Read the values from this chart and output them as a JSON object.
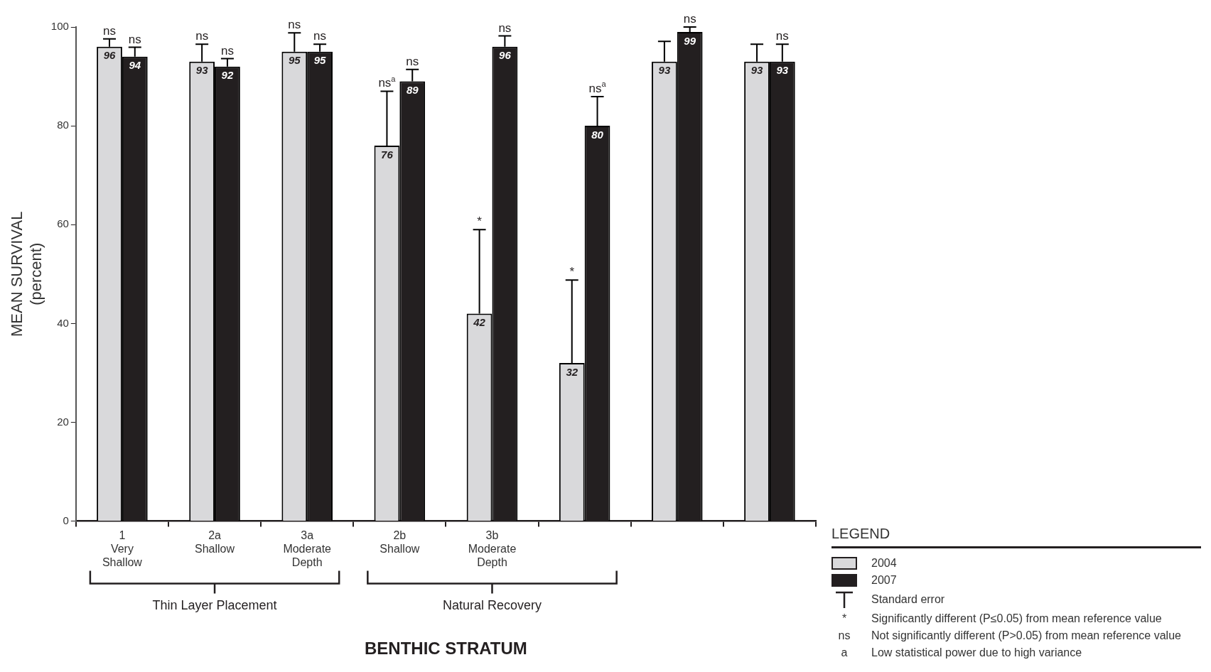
{
  "chart_data": {
    "type": "bar",
    "xlabel": "BENTHIC STRATUM",
    "ylabel": "MEAN SURVIVAL\n(percent)",
    "legend_title": "LEGEND",
    "categories": [
      "1\nVery\nShallow",
      "2a\nShallow",
      "3a\nModerate\nDepth",
      "2b\nShallow",
      "3b\nModerate\nDepth",
      null,
      null,
      null
    ],
    "series": [
      {
        "name": "2004",
        "color": "#d9d9db",
        "values": [
          96,
          93,
          95,
          76,
          42,
          32,
          93,
          93
        ],
        "errors": [
          [
            96,
            97.6
          ],
          [
            93,
            96.5
          ],
          [
            95,
            98.8
          ],
          [
            76,
            87
          ],
          [
            42,
            59
          ],
          [
            32,
            48.8
          ],
          [
            93,
            97.1
          ],
          [
            93,
            96.5
          ]
        ]
      },
      {
        "name": "2007",
        "color": "#231f20",
        "values": [
          94,
          92,
          95,
          89,
          96,
          80,
          99,
          93
        ],
        "errors": [
          [
            94,
            95.9
          ],
          [
            92,
            93.6
          ],
          [
            95,
            96.5
          ],
          [
            89,
            91.4
          ],
          [
            96,
            98.2
          ],
          [
            80,
            85.9
          ],
          [
            99,
            100
          ],
          [
            93,
            96.5
          ]
        ]
      }
    ],
    "ylim": [
      0,
      100
    ],
    "yticks": [
      0,
      20,
      40,
      60,
      80,
      100
    ],
    "grid": false,
    "legend": "bottom right",
    "data_labels": true,
    "annotations": [
      "Thin Layer Placement",
      "Natural Recovery",
      "Standard error",
      "* Significantly different (P≤0.05) from mean reference value",
      "ns Not significantly different (P>0.05) from mean reference value",
      "a Low statistical power due to high variance",
      "ns",
      "ns",
      "ns",
      "ns",
      "ns",
      "ns",
      "ns$^{a}$",
      "ns",
      "*",
      "ns",
      "*",
      "ns$^{a}$",
      "ns",
      "ns"
    ]
  }
}
